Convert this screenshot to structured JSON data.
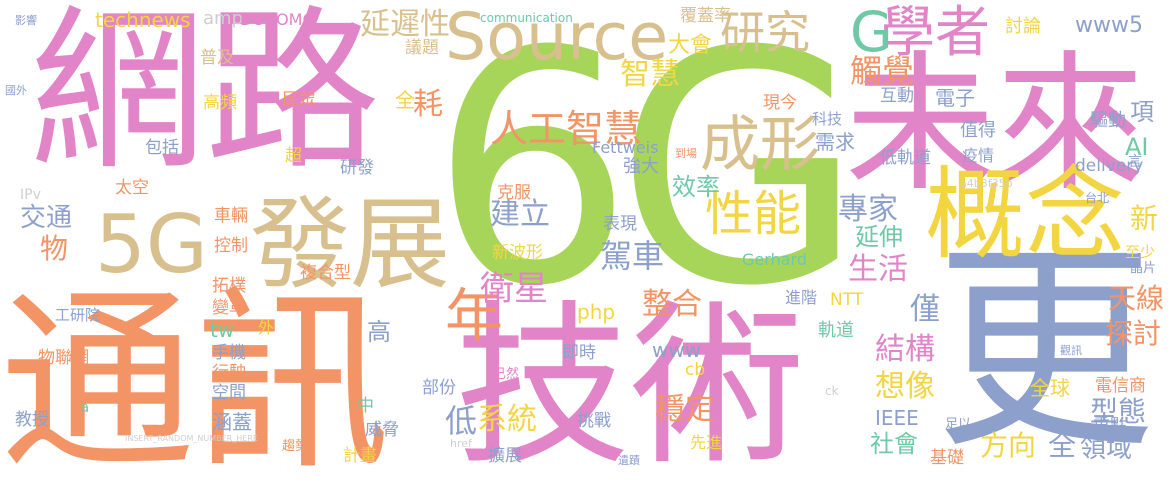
{
  "palette": {
    "pink": "#E184C8",
    "orange": "#F39466",
    "green": "#A7D55A",
    "tan": "#D8C08E",
    "blue": "#8DA0CC",
    "teal": "#6FC8A8",
    "yellow": "#F3D542",
    "lightgray": "#CFCFCF"
  },
  "words": [
    {
      "id": "w6g",
      "text": "6G",
      "color": "#A7D55A"
    },
    {
      "id": "wnet",
      "text": "網路",
      "color": "#E184C8"
    },
    {
      "id": "wcomm",
      "text": "通訊",
      "color": "#F39466"
    },
    {
      "id": "wtech",
      "text": "技術",
      "color": "#E184C8"
    },
    {
      "id": "wfuture",
      "text": "未來",
      "color": "#E184C8"
    },
    {
      "id": "wmore",
      "text": "更",
      "color": "#8DA0CC"
    },
    {
      "id": "wconcept",
      "text": "概念",
      "color": "#F3D542"
    },
    {
      "id": "wdev",
      "text": "發展",
      "color": "#D8C08E"
    },
    {
      "id": "w5g",
      "text": "5G",
      "color": "#D8C08E"
    },
    {
      "id": "wsource",
      "text": "Source",
      "color": "#D8C08E"
    },
    {
      "id": "wscholar",
      "text": "學者",
      "color": "#E184C8"
    },
    {
      "id": "wG",
      "text": "G",
      "color": "#6FC8A8"
    },
    {
      "id": "wresearch",
      "text": "研究",
      "color": "#D8C08E"
    },
    {
      "id": "wform",
      "text": "成形",
      "color": "#D8C08E"
    },
    {
      "id": "wai",
      "text": "人工智慧",
      "color": "#F39466"
    },
    {
      "id": "wperf",
      "text": "性能",
      "color": "#F3D542"
    },
    {
      "id": "wyear",
      "text": "年",
      "color": "#F39466"
    },
    {
      "id": "wlatency",
      "text": "延遲性",
      "color": "#D8C08E"
    },
    {
      "id": "wwise",
      "text": "智慧",
      "color": "#F3D542"
    },
    {
      "id": "wconf",
      "text": "大會",
      "color": "#F3D542"
    },
    {
      "id": "wtouch",
      "text": "觸覺",
      "color": "#F39466"
    },
    {
      "id": "wwww5",
      "text": "www5",
      "color": "#8DA0CC"
    },
    {
      "id": "wcoverage",
      "text": "覆蓋率",
      "color": "#D8C08E"
    },
    {
      "id": "wcommeng",
      "text": "communication",
      "color": "#6FC8A8"
    },
    {
      "id": "wtechnews",
      "text": "technews",
      "color": "#F3D542"
    },
    {
      "id": "wamp",
      "text": "amp",
      "color": "#CFCFCF"
    },
    {
      "id": "wdocomo",
      "text": "DOCOMO",
      "color": "#E184C8"
    },
    {
      "id": "wdiscuss",
      "text": "討論",
      "color": "#F3D542"
    },
    {
      "id": "wsat",
      "text": "衛星",
      "color": "#E184C8"
    },
    {
      "id": "wbuild",
      "text": "建立",
      "color": "#8DA0CC"
    },
    {
      "id": "weff",
      "text": "效率",
      "color": "#6FC8A8"
    },
    {
      "id": "wexpert",
      "text": "專家",
      "color": "#8DA0CC"
    },
    {
      "id": "wlife",
      "text": "生活",
      "color": "#E184C8"
    },
    {
      "id": "wextend",
      "text": "延伸",
      "color": "#6FC8A8"
    },
    {
      "id": "wdrive",
      "text": "駕車",
      "color": "#8DA0CC"
    },
    {
      "id": "wintegrate",
      "text": "整合",
      "color": "#F39466"
    },
    {
      "id": "wsys",
      "text": "系統",
      "color": "#F3D542"
    },
    {
      "id": "wstable",
      "text": "穩定",
      "color": "#F39466"
    },
    {
      "id": "wlow",
      "text": "低",
      "color": "#8DA0CC"
    },
    {
      "id": "wstruct",
      "text": "結構",
      "color": "#E184C8"
    },
    {
      "id": "wimagine",
      "text": "想像",
      "color": "#F3D542"
    },
    {
      "id": "wsociety",
      "text": "社會",
      "color": "#6FC8A8"
    },
    {
      "id": "wdirection",
      "text": "方向",
      "color": "#F3D542"
    },
    {
      "id": "wall",
      "text": "全",
      "color": "#8DA0CC"
    },
    {
      "id": "wfield",
      "text": "領域",
      "color": "#8DA0CC"
    },
    {
      "id": "wtype",
      "text": "型態",
      "color": "#8DA0CC"
    },
    {
      "id": "wglobal",
      "text": "全球",
      "color": "#F3D542"
    },
    {
      "id": "wexplore",
      "text": "探討",
      "color": "#F39466"
    },
    {
      "id": "wantenna",
      "text": "天線",
      "color": "#F39466"
    },
    {
      "id": "wonly",
      "text": "僅",
      "color": "#8DA0CC"
    },
    {
      "id": "wnew",
      "text": "新",
      "color": "#F3D542"
    },
    {
      "id": "wAI",
      "text": "AI",
      "color": "#6FC8A8"
    },
    {
      "id": "witem",
      "text": "項",
      "color": "#8DA0CC"
    },
    {
      "id": "welec",
      "text": "電子",
      "color": "#8DA0CC"
    },
    {
      "id": "winter",
      "text": "互動",
      "color": "#8DA0CC"
    },
    {
      "id": "wneed",
      "text": "需求",
      "color": "#8DA0CC"
    },
    {
      "id": "wnow",
      "text": "現今",
      "color": "#F39466"
    },
    {
      "id": "wtechsci",
      "text": "科技",
      "color": "#8DA0CC"
    },
    {
      "id": "wworth",
      "text": "值得",
      "color": "#8DA0CC"
    },
    {
      "id": "wdriver",
      "text": "驅動",
      "color": "#8DA0CC"
    },
    {
      "id": "wlowearth",
      "text": "低軌道",
      "color": "#8DA0CC"
    },
    {
      "id": "wepidemic",
      "text": "疫情",
      "color": "#8DA0CC"
    },
    {
      "id": "wdelivery",
      "text": "delivery",
      "color": "#8DA0CC"
    },
    {
      "id": "wfett",
      "text": "Fettweis",
      "color": "#8DA0CC"
    },
    {
      "id": "wstrong",
      "text": "強大",
      "color": "#8DA0CC"
    },
    {
      "id": "wovercome",
      "text": "克服",
      "color": "#F39466"
    },
    {
      "id": "wnewwave",
      "text": "新波形",
      "color": "#F3D542"
    },
    {
      "id": "wshow",
      "text": "表現",
      "color": "#8DA0CC"
    },
    {
      "id": "wgerhard",
      "text": "Gerhard",
      "color": "#6FC8A8"
    },
    {
      "id": "wntt",
      "text": "NTT",
      "color": "#F3D542"
    },
    {
      "id": "wadvance",
      "text": "進階",
      "color": "#8DA0CC"
    },
    {
      "id": "worbit",
      "text": "軌道",
      "color": "#6FC8A8"
    },
    {
      "id": "wieee",
      "text": "IEEE",
      "color": "#8DA0CC"
    },
    {
      "id": "wphp",
      "text": "php",
      "color": "#F3D542"
    },
    {
      "id": "wwww",
      "text": "www",
      "color": "#8DA0CC"
    },
    {
      "id": "wcb",
      "text": "cb",
      "color": "#F3D542"
    },
    {
      "id": "wrealtime",
      "text": "即時",
      "color": "#8DA0CC"
    },
    {
      "id": "wpart",
      "text": "部份",
      "color": "#8DA0CC"
    },
    {
      "id": "wmiddle",
      "text": "中",
      "color": "#6FC8A8"
    },
    {
      "id": "wchallenge",
      "text": "挑戰",
      "color": "#8DA0CC"
    },
    {
      "id": "wexpand",
      "text": "擴展",
      "color": "#8DA0CC"
    },
    {
      "id": "wadvanced",
      "text": "先進",
      "color": "#F3D542"
    },
    {
      "id": "wcomposite",
      "text": "複合型",
      "color": "#F39466"
    },
    {
      "id": "wtopo",
      "text": "拓樸",
      "color": "#F39466"
    },
    {
      "id": "wchange",
      "text": "變革",
      "color": "#F39466"
    },
    {
      "id": "wtw",
      "text": "tw",
      "color": "#6FC8A8"
    },
    {
      "id": "wphone",
      "text": "手機",
      "color": "#8DA0CC"
    },
    {
      "id": "wmobile",
      "text": "行駛",
      "color": "#F39466"
    },
    {
      "id": "wspace",
      "text": "空間",
      "color": "#8DA0CC"
    },
    {
      "id": "wcover",
      "text": "涵蓋",
      "color": "#8DA0CC"
    },
    {
      "id": "wthreat",
      "text": "威脅",
      "color": "#8DA0CC"
    },
    {
      "id": "wplan",
      "text": "計畫",
      "color": "#F3D542"
    },
    {
      "id": "wtrend",
      "text": "趨勢",
      "color": "#F39466"
    },
    {
      "id": "whigh",
      "text": "高",
      "color": "#8DA0CC"
    },
    {
      "id": "wout",
      "text": "外",
      "color": "#F3D542"
    },
    {
      "id": "wcontrol",
      "text": "控制",
      "color": "#F39466"
    },
    {
      "id": "wvehicle",
      "text": "車輛",
      "color": "#F39466"
    },
    {
      "id": "wresearchdev",
      "text": "研發",
      "color": "#8DA0CC"
    },
    {
      "id": "wsuper",
      "text": "超",
      "color": "#F3D542"
    },
    {
      "id": "wpublic",
      "text": "民眾",
      "color": "#F39466"
    },
    {
      "id": "wtopic",
      "text": "議題",
      "color": "#D8C08E"
    },
    {
      "id": "wspread",
      "text": "普及",
      "color": "#D8C08E"
    },
    {
      "id": "whighfreq",
      "text": "高頻",
      "color": "#F3D542"
    },
    {
      "id": "winclude",
      "text": "包括",
      "color": "#8DA0CC"
    },
    {
      "id": "wspaceout",
      "text": "太空",
      "color": "#F39466"
    },
    {
      "id": "wtransport",
      "text": "交通",
      "color": "#8DA0CC"
    },
    {
      "id": "wthing",
      "text": "物",
      "color": "#F39466"
    },
    {
      "id": "wipv",
      "text": "IPv",
      "color": "#CFCFCF"
    },
    {
      "id": "wlab",
      "text": "工研院",
      "color": "#8DA0CC"
    },
    {
      "id": "wiot",
      "text": "物聯網",
      "color": "#F39466"
    },
    {
      "id": "wprof",
      "text": "教授",
      "color": "#8DA0CC"
    },
    {
      "id": "wa",
      "text": "a",
      "color": "#6FC8A8"
    },
    {
      "id": "wconsume",
      "text": "耗",
      "color": "#F39466"
    },
    {
      "id": "wallsmall",
      "text": "全",
      "color": "#F3D542"
    },
    {
      "id": "wtelco",
      "text": "電信商",
      "color": "#F39466"
    },
    {
      "id": "wenough",
      "text": "足以",
      "color": "#8DA0CC"
    },
    {
      "id": "wkey",
      "text": "重點",
      "color": "#8DA0CC"
    },
    {
      "id": "wbase",
      "text": "基礎",
      "color": "#F39466"
    },
    {
      "id": "wleast",
      "text": "至少",
      "color": "#F3D542"
    },
    {
      "id": "wchip",
      "text": "晶片",
      "color": "#8DA0CC"
    },
    {
      "id": "whash",
      "text": "a4b3f35b",
      "color": "#CFCFCF"
    },
    {
      "id": "wtaipei",
      "text": "台北",
      "color": "#8DA0CC"
    },
    {
      "id": "wsay",
      "text": "言",
      "color": "#8DA0CC"
    },
    {
      "id": "whref",
      "text": "href",
      "color": "#CFCFCF"
    },
    {
      "id": "wck",
      "text": "ck",
      "color": "#CFCFCF"
    },
    {
      "id": "wsee",
      "text": "觀訊",
      "color": "#8DA0CC"
    },
    {
      "id": "wrandom",
      "text": "INSERT_RANDOM_NUMBER_HERE",
      "color": "#CFCFCF"
    },
    {
      "id": "wreach",
      "text": "到場",
      "color": "#F39466"
    },
    {
      "id": "walready",
      "text": "已然",
      "color": "#E184C8"
    },
    {
      "id": "wdecision",
      "text": "遺蹟",
      "color": "#8DA0CC"
    },
    {
      "id": "wprep",
      "text": "影響",
      "color": "#8DA0CC"
    },
    {
      "id": "wintl",
      "text": "國外",
      "color": "#8DA0CC"
    }
  ]
}
